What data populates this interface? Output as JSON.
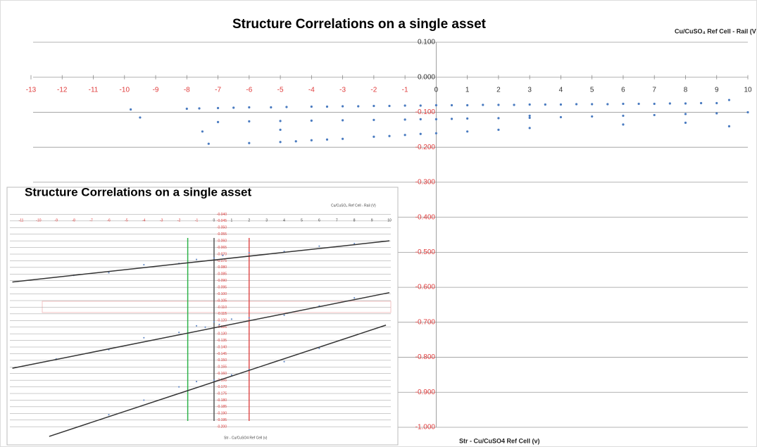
{
  "chart_data": [
    {
      "type": "scatter",
      "title": "Structure Correlations on a single asset",
      "y_label": "Cu/CuSO₄ Ref Cell - Rail (V",
      "x_label": "Str - Cu/CuSO4 Ref Cell (v)",
      "color": "#4a7bc0",
      "negative_label_color": "#e03c3c",
      "label_color": "#333333",
      "xlim": [
        -13,
        10
      ],
      "ylim": [
        -1.0,
        0.1
      ],
      "xticks": [
        -13,
        -12,
        -11,
        -10,
        -9,
        -8,
        -7,
        -6,
        -5,
        -4,
        -3,
        -2,
        -1,
        0,
        1,
        2,
        3,
        4,
        5,
        6,
        7,
        8,
        9,
        10
      ],
      "yticks": [
        {
          "value": 0.1,
          "label": "0.100"
        },
        {
          "value": 0,
          "label": "0.000"
        },
        {
          "value": -0.1,
          "label": "-0.100"
        },
        {
          "value": -0.2,
          "label": "-0.200"
        },
        {
          "value": -0.3,
          "label": "-0.300"
        },
        {
          "value": -0.4,
          "label": "-0.400"
        },
        {
          "value": -0.5,
          "label": "-0.500"
        },
        {
          "value": -0.6,
          "label": "-0.600"
        },
        {
          "value": -0.7,
          "label": "-0.700"
        },
        {
          "value": -0.8,
          "label": "-0.800"
        },
        {
          "value": -0.9,
          "label": "-0.900"
        },
        {
          "value": -1.0,
          "label": "-1.000"
        }
      ],
      "grid": true,
      "x": [
        -9.8,
        -8,
        -7.6,
        -7,
        -6.5,
        -6,
        -5.3,
        -4.8,
        -4,
        -3.5,
        -3,
        -2.5,
        -2,
        -1.5,
        -1,
        -0.5,
        0,
        0.5,
        1,
        1.5,
        2,
        2.5,
        3,
        3.5,
        4,
        4.5,
        5,
        5.5,
        6,
        6.5,
        7,
        7.5,
        8,
        8.5,
        9,
        9.4,
        -9.5,
        -7,
        -6,
        -5,
        -4,
        -3,
        -2,
        -1,
        -0.5,
        0,
        0.5,
        1,
        2,
        3,
        4,
        5,
        6,
        7,
        8,
        9,
        10,
        -7.3,
        -6,
        -5,
        -4.5,
        -4,
        -3.5,
        -3,
        -2,
        -1.5,
        -1,
        -0.5,
        0,
        1,
        2,
        3,
        -7.5,
        -5,
        3,
        6,
        8,
        9.4
      ],
      "values": [
        -0.092,
        -0.09,
        -0.089,
        -0.088,
        -0.087,
        -0.086,
        -0.086,
        -0.085,
        -0.084,
        -0.084,
        -0.083,
        -0.083,
        -0.082,
        -0.082,
        -0.081,
        -0.081,
        -0.08,
        -0.08,
        -0.08,
        -0.079,
        -0.079,
        -0.079,
        -0.078,
        -0.078,
        -0.078,
        -0.077,
        -0.077,
        -0.077,
        -0.076,
        -0.076,
        -0.076,
        -0.075,
        -0.075,
        -0.074,
        -0.074,
        -0.065,
        -0.115,
        -0.128,
        -0.126,
        -0.125,
        -0.124,
        -0.123,
        -0.122,
        -0.121,
        -0.12,
        -0.12,
        -0.119,
        -0.118,
        -0.117,
        -0.116,
        -0.114,
        -0.112,
        -0.11,
        -0.108,
        -0.105,
        -0.103,
        -0.1,
        -0.19,
        -0.188,
        -0.185,
        -0.183,
        -0.18,
        -0.178,
        -0.176,
        -0.17,
        -0.168,
        -0.165,
        -0.162,
        -0.16,
        -0.155,
        -0.15,
        -0.145,
        -0.155,
        -0.15,
        -0.11,
        -0.135,
        -0.13,
        -0.14
      ]
    },
    {
      "type": "scatter",
      "title": "Structure Correlations on a single asset",
      "y_label": "Cu/CuSO₄ Ref Cell - Rail (V)",
      "x_label": "Str - Cu/CuSO4 Ref Cell (v)",
      "color": "#6a8fc8",
      "negative_label_color": "#e03c3c",
      "label_color": "#333333",
      "xlim": [
        -11,
        10
      ],
      "ylim": [
        -0.21,
        -0.035
      ],
      "xticks": [
        -11,
        -10,
        -9,
        -8,
        -7,
        -6,
        -5,
        -4,
        -3,
        -2,
        -1,
        0,
        1,
        2,
        3,
        4,
        5,
        6,
        7,
        8,
        9,
        10
      ],
      "yticks": [
        {
          "value": -0.04,
          "label": "-0.040"
        },
        {
          "value": -0.045,
          "label": "-0.045"
        },
        {
          "value": -0.05,
          "label": "-0.050"
        },
        {
          "value": -0.055,
          "label": "-0.055"
        },
        {
          "value": -0.06,
          "label": "-0.060"
        },
        {
          "value": -0.065,
          "label": "-0.065"
        },
        {
          "value": -0.07,
          "label": "-0.070"
        },
        {
          "value": -0.075,
          "label": "-0.075"
        },
        {
          "value": -0.08,
          "label": "-0.080"
        },
        {
          "value": -0.085,
          "label": "-0.085"
        },
        {
          "value": -0.09,
          "label": "-0.090"
        },
        {
          "value": -0.095,
          "label": "-0.095"
        },
        {
          "value": -0.1,
          "label": "-0.100"
        },
        {
          "value": -0.105,
          "label": "-0.105"
        },
        {
          "value": -0.11,
          "label": "-0.110"
        },
        {
          "value": -0.115,
          "label": "-0.115"
        },
        {
          "value": -0.12,
          "label": "-0.120"
        },
        {
          "value": -0.125,
          "label": "-0.125"
        },
        {
          "value": -0.13,
          "label": "-0.130"
        },
        {
          "value": -0.135,
          "label": "-0.135"
        },
        {
          "value": -0.14,
          "label": "-0.140"
        },
        {
          "value": -0.145,
          "label": "-0.145"
        },
        {
          "value": -0.15,
          "label": "-0.150"
        },
        {
          "value": -0.155,
          "label": "-0.155"
        },
        {
          "value": -0.16,
          "label": "-0.160"
        },
        {
          "value": -0.165,
          "label": "-0.165"
        },
        {
          "value": -0.17,
          "label": "-0.170"
        },
        {
          "value": -0.175,
          "label": "-0.175"
        },
        {
          "value": -0.18,
          "label": "-0.180"
        },
        {
          "value": -0.185,
          "label": "-0.185"
        },
        {
          "value": -0.19,
          "label": "-0.190"
        },
        {
          "value": -0.195,
          "label": "-0.195"
        },
        {
          "value": -0.2,
          "label": "-0.200"
        }
      ],
      "grid": true,
      "x": [
        -8,
        -6,
        -4,
        -2,
        -1,
        0,
        0.5,
        2,
        4,
        6,
        8,
        -9,
        -6,
        -4,
        -2,
        -1,
        -0.5,
        0,
        0.3,
        1,
        2,
        4,
        6,
        8,
        -6,
        -4,
        -2,
        -1,
        0,
        1,
        2,
        4,
        6
      ],
      "values": [
        -0.086,
        -0.084,
        -0.078,
        -0.077,
        -0.074,
        -0.073,
        -0.071,
        -0.069,
        -0.068,
        -0.064,
        -0.062,
        -0.149,
        -0.142,
        -0.133,
        -0.129,
        -0.124,
        -0.125,
        -0.121,
        -0.123,
        -0.119,
        -0.118,
        -0.116,
        -0.109,
        -0.103,
        -0.191,
        -0.18,
        -0.17,
        -0.166,
        -0.165,
        -0.161,
        -0.157,
        -0.151,
        -0.141
      ],
      "trend_lines": [
        {
          "x": [
            -11.5,
            10
          ],
          "y": [
            -0.091,
            -0.06
          ]
        },
        {
          "x": [
            -11.5,
            10
          ],
          "y": [
            -0.156,
            -0.099
          ]
        },
        {
          "x": [
            -9.4,
            9.8
          ],
          "y": [
            -0.2073,
            -0.1235
          ]
        }
      ],
      "reference_lines": [
        {
          "x": -1.5,
          "color": "#2db34a"
        },
        {
          "x": 0,
          "color": "#555555"
        },
        {
          "x": 2,
          "color": "#e05050"
        }
      ]
    }
  ]
}
